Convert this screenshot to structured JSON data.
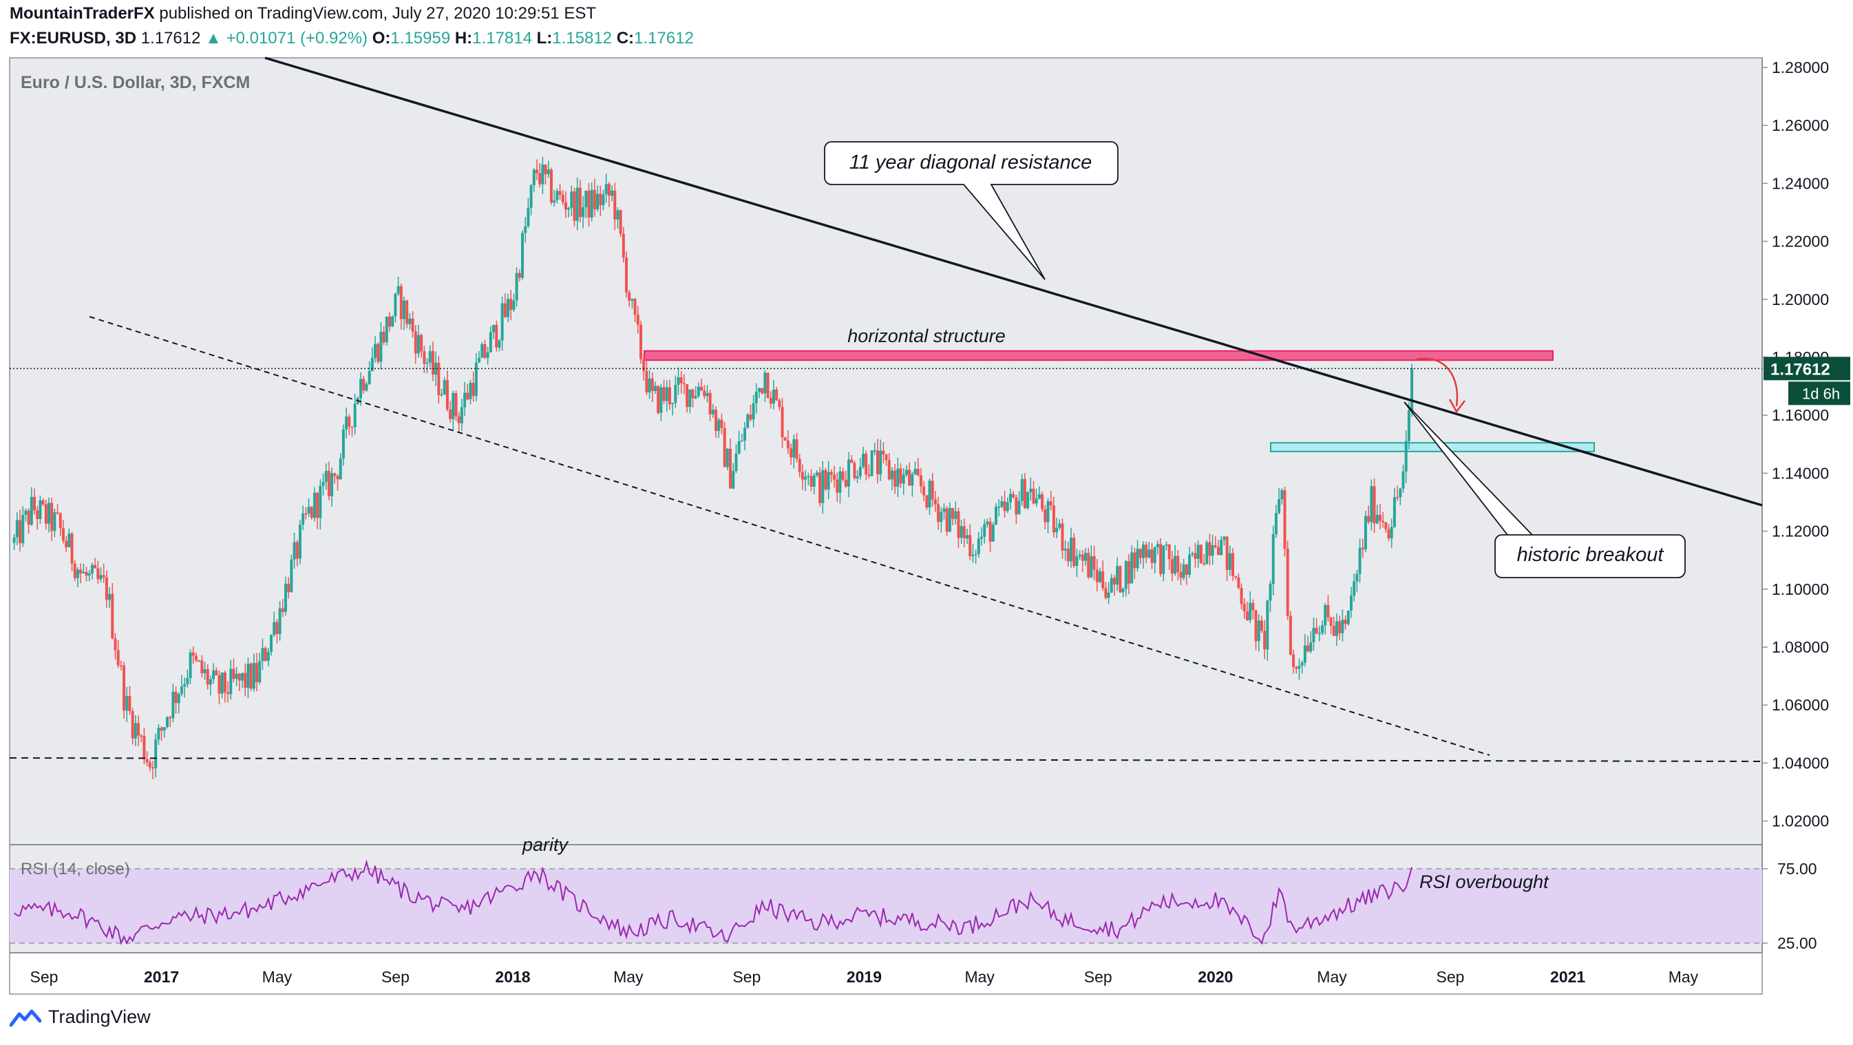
{
  "header": {
    "author": "MountainTraderFX",
    "published": "published on TradingView.com, July 27, 2020 10:29:51 EST",
    "symbol": "FX:EURUSD, 3D",
    "last": "1.17612",
    "change": "▲ +0.01071 (+0.92%)",
    "o_label": "O:",
    "o_value": "1.15959",
    "h_label": "H:",
    "h_value": "1.17814",
    "l_label": "L:",
    "l_value": "1.15812",
    "c_label": "C:",
    "c_value": "1.17612"
  },
  "chart_title": "Euro / U.S. Dollar, 3D, FXCM",
  "footer": {
    "brand": "TradingView",
    "logo_icon": "tradingview-logo-icon"
  },
  "colors": {
    "up": "#26a69a",
    "down": "#ef5350",
    "resistance_zone": "#f06292",
    "support_zone": "#b2ebf2",
    "rsi_band": "#e1d2f3",
    "rsi_line": "#9c27b0"
  },
  "chart_data": [
    {
      "type": "candlestick",
      "title": "Euro / U.S. Dollar, 3D, FXCM",
      "x_ticks": [
        "Sep",
        "2017",
        "May",
        "Sep",
        "2018",
        "May",
        "Sep",
        "2019",
        "May",
        "Sep",
        "2020",
        "May",
        "Sep",
        "2021",
        "May"
      ],
      "y_ticks": [
        "1.28000",
        "1.26000",
        "1.24000",
        "1.22000",
        "1.20000",
        "1.18000",
        "1.16000",
        "1.14000",
        "1.12000",
        "1.10000",
        "1.08000",
        "1.06000",
        "1.04000",
        "1.02000"
      ],
      "ylim": [
        1.012,
        1.284
      ],
      "price_label": "1.17612",
      "countdown_label": "1d 6h",
      "approx_close_path": [
        {
          "x": "2016-08-01",
          "y": 1.116
        },
        {
          "x": "2016-08-20",
          "y": 1.128
        },
        {
          "x": "2016-09-15",
          "y": 1.122
        },
        {
          "x": "2016-10-10",
          "y": 1.105
        },
        {
          "x": "2016-11-05",
          "y": 1.1
        },
        {
          "x": "2016-11-25",
          "y": 1.06
        },
        {
          "x": "2016-12-20",
          "y": 1.04
        },
        {
          "x": "2017-01-10",
          "y": 1.06
        },
        {
          "x": "2017-02-01",
          "y": 1.075
        },
        {
          "x": "2017-03-01",
          "y": 1.065
        },
        {
          "x": "2017-04-10",
          "y": 1.07
        },
        {
          "x": "2017-05-01",
          "y": 1.09
        },
        {
          "x": "2017-06-01",
          "y": 1.125
        },
        {
          "x": "2017-07-01",
          "y": 1.14
        },
        {
          "x": "2017-07-25",
          "y": 1.17
        },
        {
          "x": "2017-09-05",
          "y": 1.2
        },
        {
          "x": "2017-10-01",
          "y": 1.18
        },
        {
          "x": "2017-11-05",
          "y": 1.16
        },
        {
          "x": "2017-12-01",
          "y": 1.18
        },
        {
          "x": "2018-01-01",
          "y": 1.2
        },
        {
          "x": "2018-01-25",
          "y": 1.245
        },
        {
          "x": "2018-02-15",
          "y": 1.235
        },
        {
          "x": "2018-03-15",
          "y": 1.232
        },
        {
          "x": "2018-04-15",
          "y": 1.236
        },
        {
          "x": "2018-05-05",
          "y": 1.195
        },
        {
          "x": "2018-05-25",
          "y": 1.165
        },
        {
          "x": "2018-06-20",
          "y": 1.168
        },
        {
          "x": "2018-07-20",
          "y": 1.17
        },
        {
          "x": "2018-08-15",
          "y": 1.14
        },
        {
          "x": "2018-09-20",
          "y": 1.175
        },
        {
          "x": "2018-10-15",
          "y": 1.15
        },
        {
          "x": "2018-11-15",
          "y": 1.135
        },
        {
          "x": "2019-01-01",
          "y": 1.145
        },
        {
          "x": "2019-03-01",
          "y": 1.135
        },
        {
          "x": "2019-04-25",
          "y": 1.115
        },
        {
          "x": "2019-06-20",
          "y": 1.135
        },
        {
          "x": "2019-08-01",
          "y": 1.115
        },
        {
          "x": "2019-09-15",
          "y": 1.1
        },
        {
          "x": "2019-10-20",
          "y": 1.115
        },
        {
          "x": "2019-12-01",
          "y": 1.105
        },
        {
          "x": "2020-01-01",
          "y": 1.12
        },
        {
          "x": "2020-02-20",
          "y": 1.08
        },
        {
          "x": "2020-03-09",
          "y": 1.14
        },
        {
          "x": "2020-03-20",
          "y": 1.07
        },
        {
          "x": "2020-04-15",
          "y": 1.09
        },
        {
          "x": "2020-05-15",
          "y": 1.085
        },
        {
          "x": "2020-06-10",
          "y": 1.13
        },
        {
          "x": "2020-06-30",
          "y": 1.122
        },
        {
          "x": "2020-07-15",
          "y": 1.14
        },
        {
          "x": "2020-07-25",
          "y": 1.176
        }
      ],
      "annotations": [
        {
          "text": "11 year diagonal resistance"
        },
        {
          "text": "horizontal structure"
        },
        {
          "text": "historic breakout"
        },
        {
          "text": "parity"
        }
      ]
    },
    {
      "type": "line",
      "title": "RSI (14, close)",
      "y_ticks": [
        "75.00",
        "25.00"
      ],
      "ylim": [
        15,
        88
      ],
      "band": [
        30,
        70
      ],
      "annotation": "RSI overbought",
      "approx_values": [
        {
          "x": "2016-08-01",
          "y": 48
        },
        {
          "x": "2016-10-01",
          "y": 46
        },
        {
          "x": "2016-11-25",
          "y": 28
        },
        {
          "x": "2017-01-10",
          "y": 42
        },
        {
          "x": "2017-03-01",
          "y": 44
        },
        {
          "x": "2017-04-10",
          "y": 48
        },
        {
          "x": "2017-06-10",
          "y": 64
        },
        {
          "x": "2017-08-01",
          "y": 75
        },
        {
          "x": "2017-09-15",
          "y": 58
        },
        {
          "x": "2017-11-05",
          "y": 46
        },
        {
          "x": "2018-01-05",
          "y": 64
        },
        {
          "x": "2018-01-25",
          "y": 74
        },
        {
          "x": "2018-03-01",
          "y": 55
        },
        {
          "x": "2018-05-01",
          "y": 32
        },
        {
          "x": "2018-06-20",
          "y": 42
        },
        {
          "x": "2018-08-10",
          "y": 28
        },
        {
          "x": "2018-09-20",
          "y": 50
        },
        {
          "x": "2018-11-10",
          "y": 38
        },
        {
          "x": "2019-01-01",
          "y": 44
        },
        {
          "x": "2019-04-20",
          "y": 36
        },
        {
          "x": "2019-06-20",
          "y": 54
        },
        {
          "x": "2019-08-01",
          "y": 40
        },
        {
          "x": "2019-09-25",
          "y": 34
        },
        {
          "x": "2019-11-01",
          "y": 52
        },
        {
          "x": "2020-01-01",
          "y": 54
        },
        {
          "x": "2020-02-20",
          "y": 28
        },
        {
          "x": "2020-03-09",
          "y": 62
        },
        {
          "x": "2020-03-20",
          "y": 34
        },
        {
          "x": "2020-04-20",
          "y": 42
        },
        {
          "x": "2020-06-10",
          "y": 56
        },
        {
          "x": "2020-07-15",
          "y": 64
        },
        {
          "x": "2020-07-25",
          "y": 76
        }
      ]
    }
  ]
}
